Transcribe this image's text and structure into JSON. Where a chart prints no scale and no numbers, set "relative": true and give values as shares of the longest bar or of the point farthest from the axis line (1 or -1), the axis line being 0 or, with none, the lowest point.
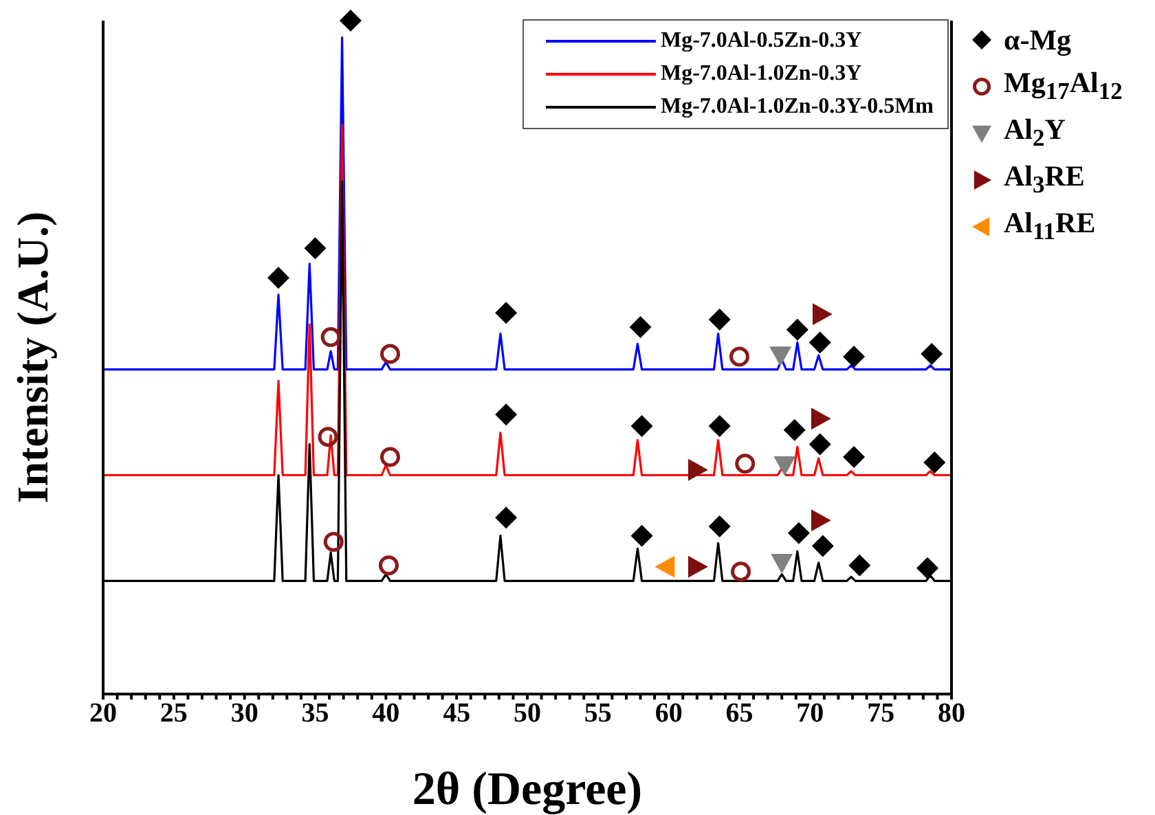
{
  "chart_data": {
    "type": "line",
    "xlabel": "2θ (Degree)",
    "ylabel": "Intensity (A.U.)",
    "relative": true,
    "tick_labels": "x",
    "legend": "top right",
    "xlim": [
      20,
      80
    ],
    "xticks": [
      20,
      {
        "value": 21,
        "label": null
      },
      {
        "value": 22,
        "label": null
      },
      {
        "value": 23,
        "label": null
      },
      {
        "value": 24,
        "label": null
      },
      25,
      {
        "value": 26,
        "label": null
      },
      {
        "value": 27,
        "label": null
      },
      {
        "value": 28,
        "label": null
      },
      {
        "value": 29,
        "label": null
      },
      30,
      {
        "value": 31,
        "label": null
      },
      {
        "value": 32,
        "label": null
      },
      {
        "value": 33,
        "label": null
      },
      {
        "value": 34,
        "label": null
      },
      35,
      {
        "value": 36,
        "label": null
      },
      {
        "value": 37,
        "label": null
      },
      {
        "value": 38,
        "label": null
      },
      {
        "value": 39,
        "label": null
      },
      40,
      {
        "value": 41,
        "label": null
      },
      {
        "value": 42,
        "label": null
      },
      {
        "value": 43,
        "label": null
      },
      {
        "value": 44,
        "label": null
      },
      45,
      {
        "value": 46,
        "label": null
      },
      {
        "value": 47,
        "label": null
      },
      {
        "value": 48,
        "label": null
      },
      {
        "value": 49,
        "label": null
      },
      50,
      {
        "value": 51,
        "label": null
      },
      {
        "value": 52,
        "label": null
      },
      {
        "value": 53,
        "label": null
      },
      {
        "value": 54,
        "label": null
      },
      55,
      {
        "value": 56,
        "label": null
      },
      {
        "value": 57,
        "label": null
      },
      {
        "value": 58,
        "label": null
      },
      {
        "value": 59,
        "label": null
      },
      60,
      {
        "value": 61,
        "label": null
      },
      {
        "value": 62,
        "label": null
      },
      {
        "value": 63,
        "label": null
      },
      {
        "value": 64,
        "label": null
      },
      65,
      {
        "value": 66,
        "label": null
      },
      {
        "value": 67,
        "label": null
      },
      {
        "value": 68,
        "label": null
      },
      {
        "value": 69,
        "label": null
      },
      70,
      {
        "value": 71,
        "label": null
      },
      {
        "value": 72,
        "label": null
      },
      {
        "value": 73,
        "label": null
      },
      {
        "value": 74,
        "label": null
      },
      75,
      {
        "value": 76,
        "label": null
      },
      {
        "value": 77,
        "label": null
      },
      {
        "value": 78,
        "label": null
      },
      {
        "value": 79,
        "label": null
      },
      80
    ],
    "x": [
      20,
      32.1,
      32.4,
      32.7,
      34.3,
      34.6,
      34.9,
      35.85,
      36.1,
      36.35,
      36.6,
      36.9,
      37.2,
      39.7,
      40.0,
      40.3,
      47.8,
      48.1,
      48.4,
      57.5,
      57.8,
      58.1,
      63.2,
      63.5,
      63.8,
      67.7,
      68.0,
      68.3,
      68.8,
      69.1,
      69.4,
      70.3,
      70.6,
      70.9,
      72.6,
      72.9,
      73.2,
      78.2,
      78.5,
      78.8,
      80
    ],
    "series": [
      {
        "name": "Mg-7.0Al-0.5Zn-0.3Y",
        "color": "#0000ff",
        "values": [
          0.482,
          0.482,
          0.593,
          0.482,
          0.482,
          0.639,
          0.482,
          0.482,
          0.509,
          0.482,
          0.482,
          0.975,
          0.482,
          0.482,
          0.493,
          0.482,
          0.482,
          0.535,
          0.482,
          0.482,
          0.52,
          0.482,
          0.482,
          0.535,
          0.482,
          0.482,
          0.497,
          0.482,
          0.482,
          0.522,
          0.482,
          0.482,
          0.503,
          0.482,
          0.482,
          0.488,
          0.482,
          0.482,
          0.488,
          0.482,
          0.482
        ]
      },
      {
        "name": "Mg-7.0Al-1.0Zn-0.3Y",
        "color": "#ff0000",
        "values": [
          0.325,
          0.325,
          0.465,
          0.325,
          0.325,
          0.549,
          0.325,
          0.325,
          0.384,
          0.325,
          0.325,
          0.845,
          0.325,
          0.325,
          0.34,
          0.325,
          0.325,
          0.388,
          0.325,
          0.325,
          0.377,
          0.325,
          0.325,
          0.377,
          0.325,
          0.325,
          0.335,
          0.325,
          0.325,
          0.367,
          0.325,
          0.325,
          0.35,
          0.325,
          0.325,
          0.331,
          0.325,
          0.325,
          0.331,
          0.325,
          0.325
        ]
      },
      {
        "name": "Mg-7.0Al-1.0Zn-0.3Y-0.5Mm",
        "color": "#000000",
        "values": [
          0.168,
          0.168,
          0.325,
          0.168,
          0.168,
          0.371,
          0.168,
          0.168,
          0.21,
          0.168,
          0.168,
          0.761,
          0.168,
          0.168,
          0.178,
          0.168,
          0.168,
          0.235,
          0.168,
          0.168,
          0.216,
          0.168,
          0.168,
          0.224,
          0.168,
          0.168,
          0.178,
          0.168,
          0.168,
          0.212,
          0.168,
          0.168,
          0.195,
          0.168,
          0.168,
          0.174,
          0.168,
          0.168,
          0.176,
          0.168,
          0.168
        ]
      },
      {
        "type": "scatter",
        "name": "α-Mg",
        "color": "#000000",
        "marker": "diamond",
        "x": [
          32.4,
          35.0,
          37.5,
          48.5,
          58.0,
          63.6,
          69.1,
          70.7,
          73.1,
          78.6,
          48.5,
          58.1,
          63.6,
          68.9,
          70.7,
          73.1,
          78.8,
          48.5,
          58.1,
          63.6,
          69.2,
          70.9,
          73.5,
          78.3
        ],
        "values": [
          0.618,
          0.662,
          1,
          0.566,
          0.545,
          0.556,
          0.541,
          0.522,
          0.501,
          0.505,
          0.415,
          0.398,
          0.398,
          0.392,
          0.371,
          0.352,
          0.344,
          0.262,
          0.235,
          0.249,
          0.239,
          0.22,
          0.191,
          0.187
        ]
      },
      {
        "type": "scatter",
        "name": "Mg$_{17}$Al$_{12}$",
        "color": "#8b1a1a",
        "marker": "circle",
        "x": [
          36.1,
          40.3,
          65.0,
          35.9,
          40.3,
          65.4,
          36.3,
          40.2,
          65.1
        ],
        "values": [
          0.53,
          0.505,
          0.501,
          0.382,
          0.352,
          0.342,
          0.226,
          0.191,
          0.182
        ]
      },
      {
        "type": "scatter",
        "name": "Al$_{2}$Y",
        "color": "#808080",
        "marker": "triangle-down",
        "x": [
          67.9,
          68.2,
          68.0
        ],
        "values": [
          0.503,
          0.34,
          0.195
        ]
      },
      {
        "type": "scatter",
        "name": "Al$_{3}$RE",
        "color": "#7f0f0f",
        "marker": "triangle-right",
        "x": [
          70.8,
          70.7,
          62.0,
          70.7,
          62.0
        ],
        "values": [
          0.564,
          0.409,
          0.333,
          0.258,
          0.189
        ]
      },
      {
        "type": "scatter",
        "name": "Al$_{11}$RE",
        "color": "#ff8c00",
        "marker": "triangle-left",
        "x": [
          59.8
        ],
        "values": [
          0.189
        ]
      }
    ]
  }
}
